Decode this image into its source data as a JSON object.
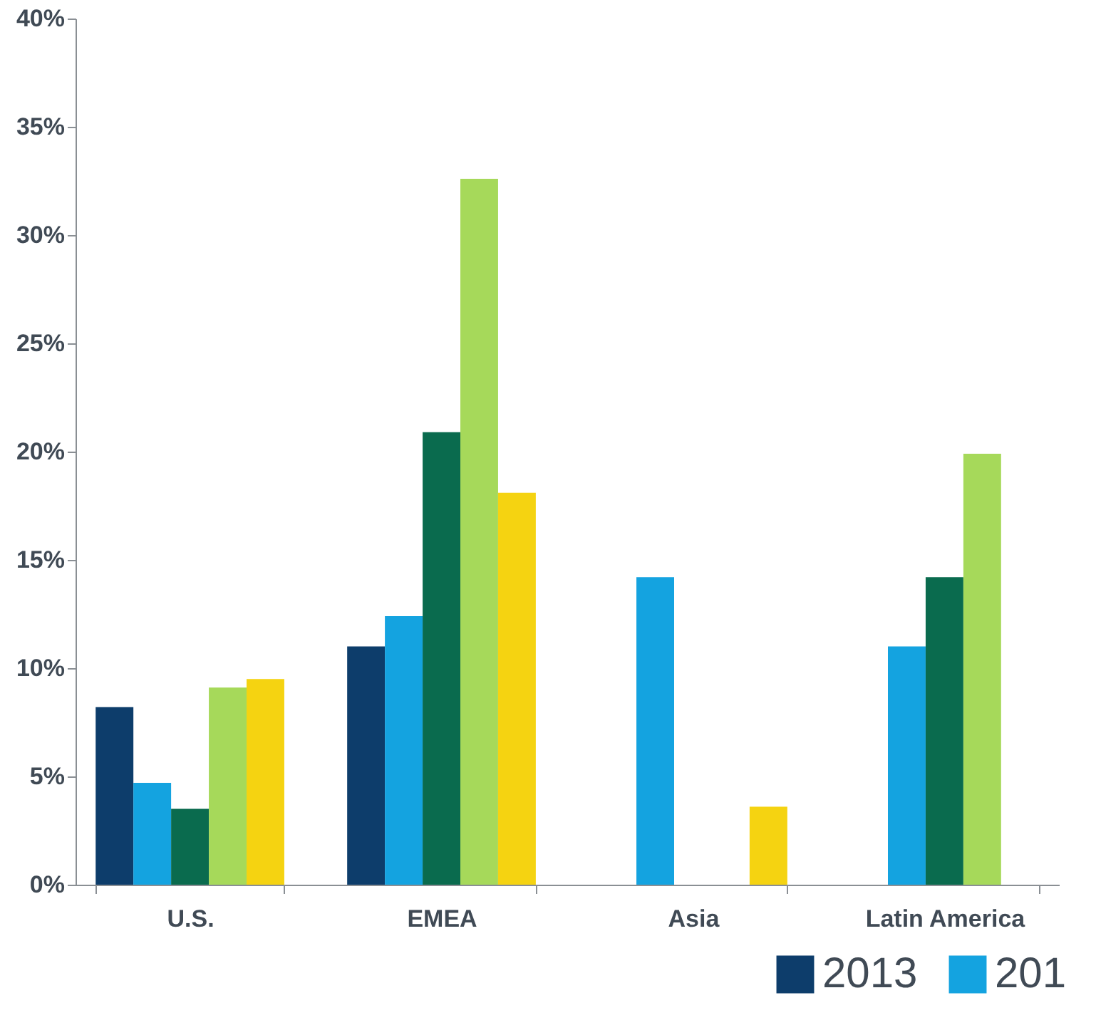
{
  "chart_data": {
    "type": "bar",
    "categories": [
      "U.S.",
      "EMEA",
      "Asia",
      "Latin America"
    ],
    "series": [
      {
        "name": "2013",
        "color": "#0d3d6b",
        "values": [
          8.2,
          11.0,
          null,
          null
        ]
      },
      {
        "name": "201",
        "color": "#14a3e0",
        "values": [
          4.7,
          12.4,
          14.2,
          11.0
        ]
      },
      {
        "color": "#0a6b4e",
        "values": [
          3.5,
          20.9,
          null,
          14.2
        ]
      },
      {
        "color": "#a6d95a",
        "values": [
          9.1,
          32.6,
          null,
          19.9
        ]
      },
      {
        "color": "#f5d311",
        "values": [
          9.5,
          18.1,
          3.6,
          null
        ]
      }
    ],
    "ylim": [
      0,
      40
    ],
    "yticks": [
      {
        "value": 0,
        "label": "0%"
      },
      {
        "value": 5,
        "label": "5%"
      },
      {
        "value": 10,
        "label": "10%"
      },
      {
        "value": 15,
        "label": "15%"
      },
      {
        "value": 20,
        "label": "20%"
      },
      {
        "value": 25,
        "label": "25%"
      },
      {
        "value": 30,
        "label": "30%"
      },
      {
        "value": 35,
        "label": "35%"
      },
      {
        "value": 40,
        "label": "40%"
      }
    ],
    "grid": false,
    "legend": "bottom right"
  }
}
